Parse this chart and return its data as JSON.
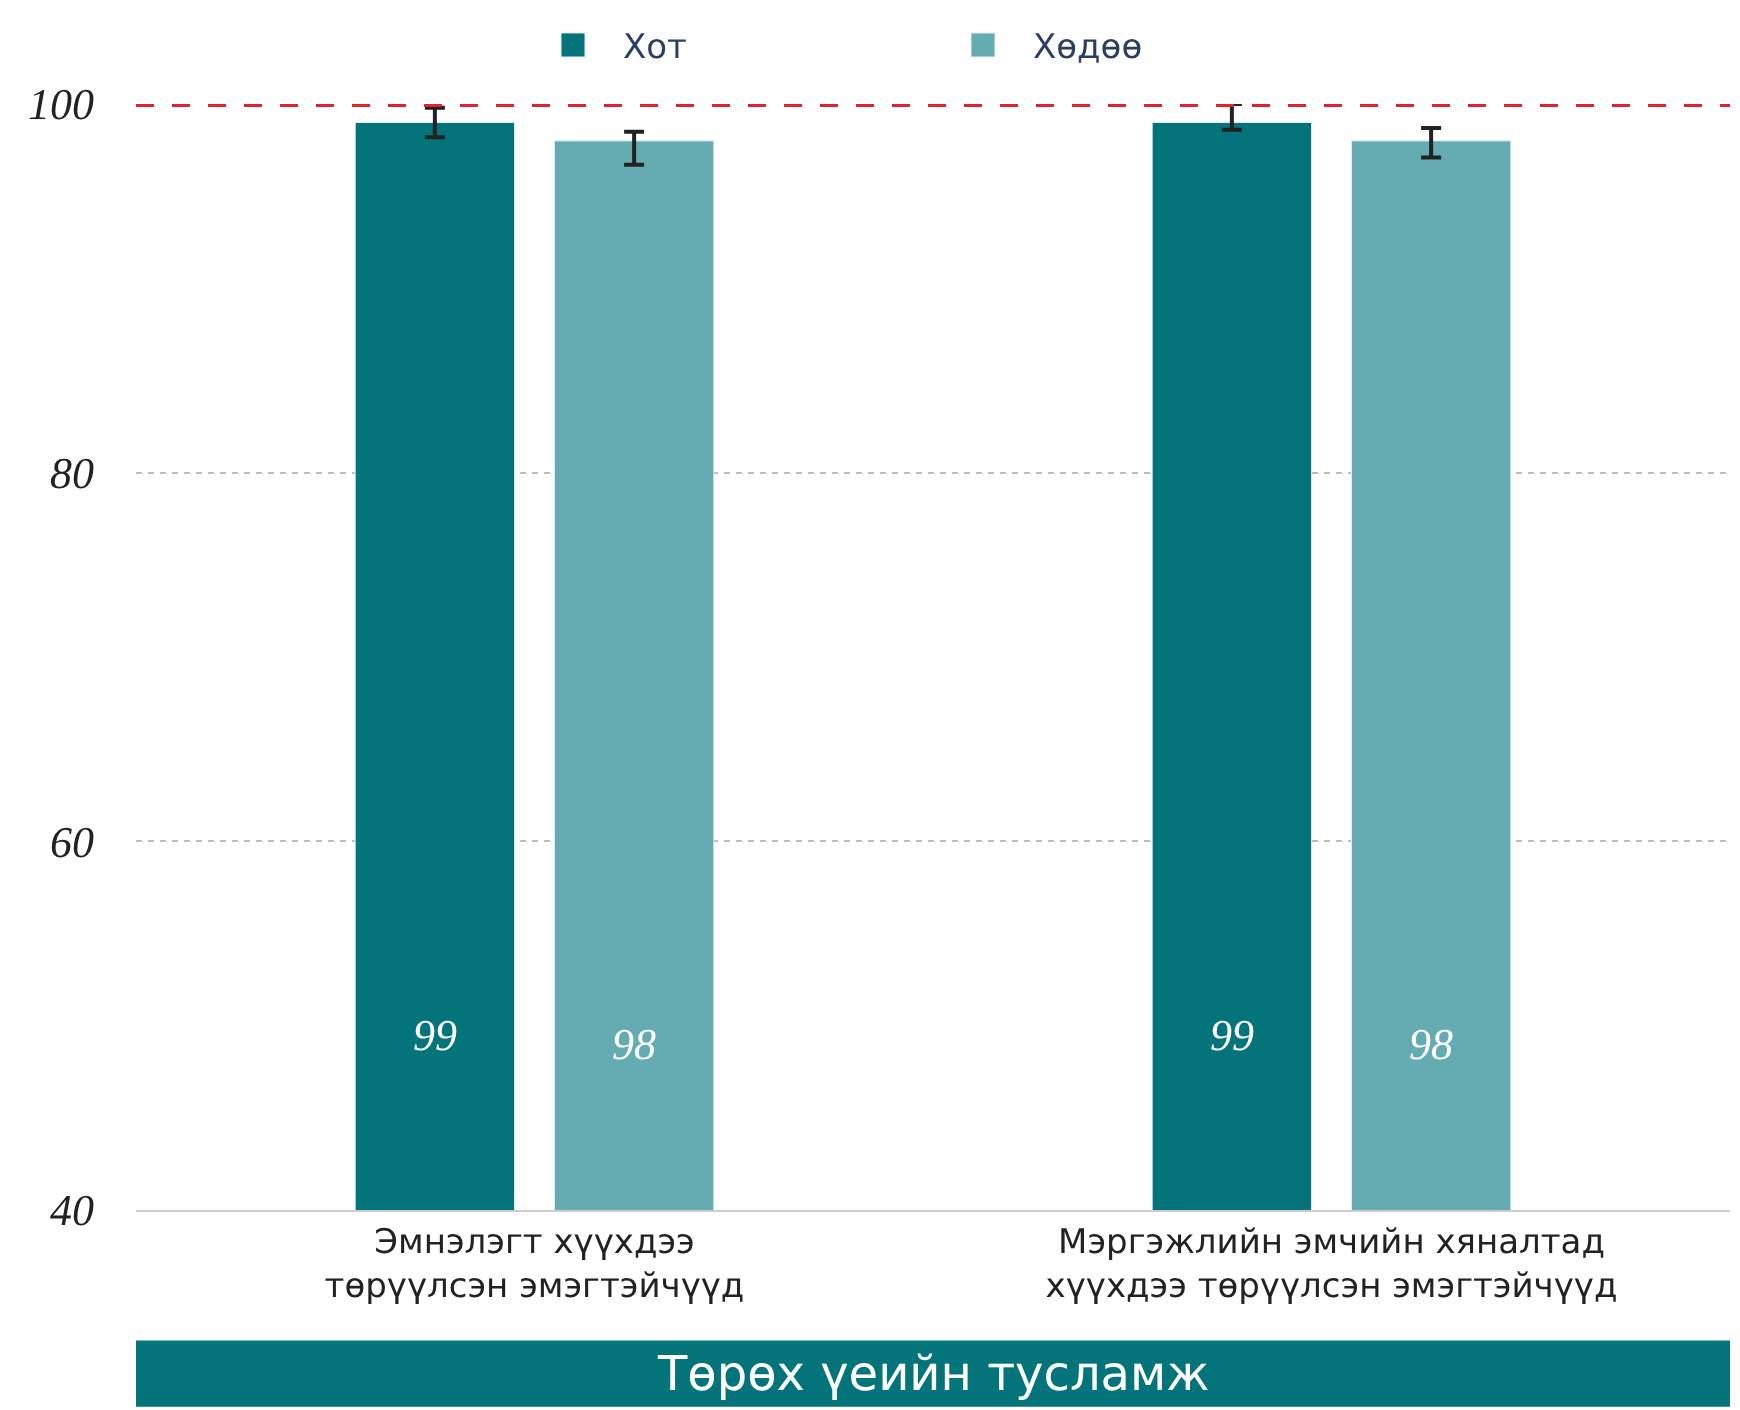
{
  "chart_data": {
    "type": "bar",
    "categories": [
      "Эмнэлэгт хүүхдээ\nтөрүүлсэн эмэгтэйчүүд",
      "Мэргэжлийн эмчийн хяналтад\nхүүхдээ төрүүлсэн эмэгтэйчүүд"
    ],
    "series": [
      {
        "name": "Хот",
        "color": "#02747a",
        "values": [
          99,
          99
        ],
        "errors": [
          [
            98.2,
            99.8
          ],
          [
            98.6,
            100
          ]
        ]
      },
      {
        "name": "Хөдөө",
        "color": "#64acb2",
        "values": [
          98,
          98
        ],
        "errors": [
          [
            96.7,
            98.5
          ],
          [
            97.1,
            98.7
          ]
        ]
      }
    ],
    "xlabel": "Төрөх үеийн тусламж",
    "ylim": [
      40,
      100
    ],
    "yticks": [
      40,
      60,
      80,
      100
    ],
    "ref_lines": [
      {
        "axis": "y",
        "value": 100,
        "color": "#e3232b",
        "line_style": "dashed"
      }
    ],
    "grid": "y",
    "legend": "top",
    "data_labels": true
  }
}
